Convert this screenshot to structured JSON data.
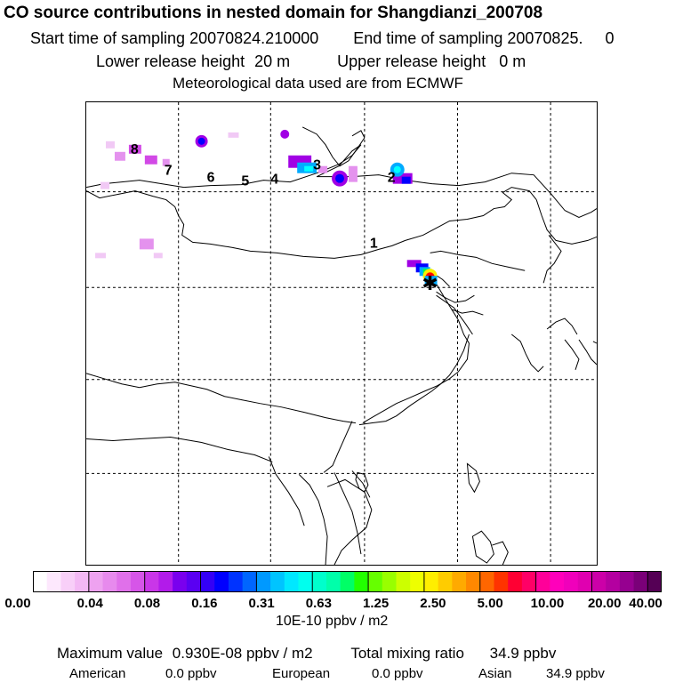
{
  "header": {
    "title": "CO  source contributions in nested domain for Shangdianzi_200708",
    "start_label": "Start time of sampling",
    "start_value": "20070824.210000",
    "end_label": "End time of sampling",
    "end_value": "20070825.     0",
    "lower_label": "Lower release height",
    "lower_value": "20 m",
    "upper_label": "Upper release height",
    "upper_value": "0 m",
    "meteo": "Meteorological data used are from ECMWF"
  },
  "map": {
    "point_labels": [
      "1",
      "2",
      "3",
      "4",
      "5",
      "6",
      "7",
      "8"
    ],
    "receptor_symbol": "✱",
    "plume_colors": {
      "faint": "#f1c9f5",
      "light": "#e492ee",
      "mid": "#d249e6",
      "violet": "#a100e4",
      "blue": "#0000ff",
      "skyblue": "#00aaff",
      "cyan": "#00ffff",
      "green": "#00ff44",
      "yellow": "#ffee00",
      "red": "#ff0000",
      "lakeblue": "#0066ff"
    }
  },
  "colorbar": {
    "colors": [
      "#ffffff",
      "#fde8fd",
      "#f8cff8",
      "#f3b8f4",
      "#eea2f0",
      "#e78aed",
      "#e070ea",
      "#d655e8",
      "#c936e8",
      "#b21bea",
      "#7a00ee",
      "#5a00f2",
      "#3400f6",
      "#0000ff",
      "#0033ff",
      "#0066ff",
      "#0099ff",
      "#00c4ff",
      "#00e8ff",
      "#00ffee",
      "#00ffcc",
      "#00ffaa",
      "#00ff66",
      "#22ff00",
      "#66ff00",
      "#99ff00",
      "#ccff00",
      "#eeff00",
      "#ffee00",
      "#ffcc00",
      "#ffaa00",
      "#ff8800",
      "#ff6600",
      "#ff3300",
      "#ff0033",
      "#ff0066",
      "#ff0099",
      "#ff00bb",
      "#f000bb",
      "#e000b0",
      "#cc00a8",
      "#b400a0",
      "#960090",
      "#7a0078",
      "#550055"
    ],
    "ticks": [
      "0.00",
      "0.04",
      "0.08",
      "0.16",
      "0.31",
      "0.63",
      "1.25",
      "2.50",
      "5.00",
      "10.00",
      "20.00",
      "40.00"
    ],
    "unit": "10E-10 ppbv / m2"
  },
  "footer": {
    "max_label": "Maximum value",
    "max_value": "0.930E-08 ppbv / m2",
    "total_label": "Total mixing ratio",
    "total_value": "34.9 ppbv",
    "sources": [
      {
        "name": "American",
        "value": "0.0 ppbv"
      },
      {
        "name": "European",
        "value": "0.0 ppbv"
      },
      {
        "name": "Asian",
        "value": "34.9 ppbv"
      }
    ]
  }
}
